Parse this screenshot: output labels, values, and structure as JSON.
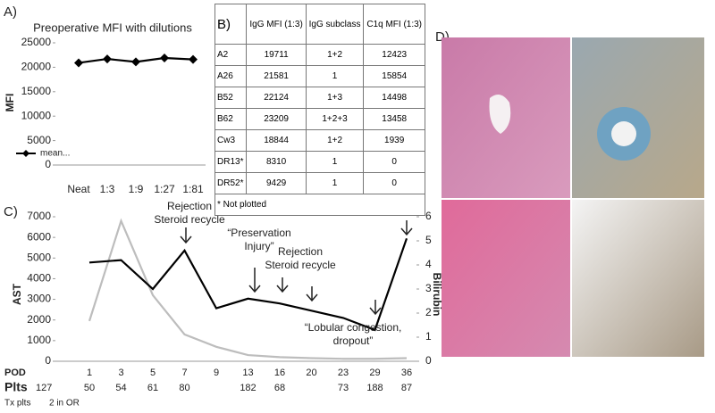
{
  "chart_data": [
    {
      "type": "line",
      "panel": "A)",
      "title": "Preoperative MFI with dilutions",
      "y_label": "MFI",
      "categories": [
        "Neat",
        "1:3",
        "1:9",
        "1:27",
        "1:81"
      ],
      "series": [
        {
          "name": "mean...",
          "color": "#000000",
          "marker": "diamond",
          "values": [
            20900,
            21700,
            21100,
            21900,
            21600
          ]
        }
      ],
      "ylim": [
        0,
        25000
      ],
      "yticks": [
        0,
        5000,
        10000,
        15000,
        20000,
        25000
      ],
      "grid": false,
      "legend": "lower left"
    },
    {
      "type": "line",
      "panel": "C)",
      "x_label": "POD",
      "y_label": "AST",
      "y2_label": "Bilirubin",
      "categories": [
        "1",
        "3",
        "5",
        "7",
        "9",
        "13",
        "16",
        "20",
        "23",
        "29",
        "36"
      ],
      "series": [
        {
          "name": "AST",
          "color": "#bdbdbd",
          "values": [
            1950,
            6800,
            3200,
            1300,
            700,
            300,
            200,
            150,
            120,
            120,
            150
          ]
        },
        {
          "name": "Bilirubin",
          "color": "#000000",
          "axis": "y2",
          "values": [
            4.1,
            4.2,
            3.0,
            4.6,
            2.2,
            2.6,
            2.4,
            2.1,
            1.8,
            1.3,
            5.1
          ]
        }
      ],
      "ylim": [
        0,
        7000
      ],
      "yticks": [
        0,
        1000,
        2000,
        3000,
        4000,
        5000,
        6000,
        7000
      ],
      "y2lim": [
        0,
        6
      ],
      "y2ticks": [
        0,
        1,
        2,
        3,
        4,
        5,
        6
      ],
      "grid": false,
      "annotations": [
        {
          "lines": [
            "Rejection",
            "Steroid recycle"
          ]
        },
        {
          "lines": [
            "“Preservation",
            "Injury”"
          ]
        },
        {
          "lines": [
            "Rejection",
            "Steroid recycle"
          ]
        },
        {
          "lines": [
            "“Lobular congestion,",
            "dropout”"
          ]
        }
      ],
      "platelets": {
        "label": "Plts",
        "preop": 127,
        "values": [
          50,
          54,
          61,
          80,
          null,
          182,
          68,
          null,
          73,
          188,
          87
        ]
      },
      "transfusion": {
        "label": "Tx plts",
        "note": "2 in OR"
      }
    }
  ],
  "table": {
    "header": [
      "B)",
      "IgG MFI (1:3)",
      "IgG subclass",
      "C1q MFI (1:3)"
    ],
    "rows": [
      [
        "A2",
        19711,
        "1+2",
        12423
      ],
      [
        "A26",
        21581,
        "1",
        15854
      ],
      [
        "B52",
        22124,
        "1+3",
        14498
      ],
      [
        "B62",
        23209,
        "1+2+3",
        13458
      ],
      [
        "Cw3",
        18844,
        "1+2",
        1939
      ],
      [
        "DR13*",
        8310,
        "1",
        0
      ],
      [
        "DR52*",
        9429,
        "1",
        0
      ]
    ],
    "footnote": "* Not plotted"
  },
  "image_panel": {
    "label": "D)"
  }
}
